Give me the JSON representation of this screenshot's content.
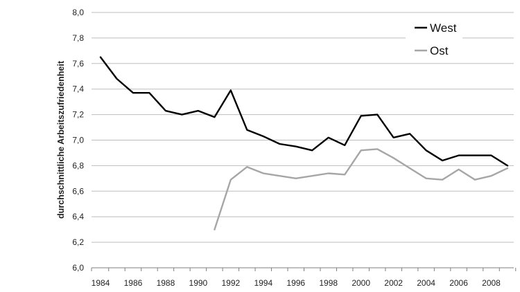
{
  "chart_data": {
    "type": "line",
    "title": "",
    "xlabel": "",
    "ylabel": "durchschnittliche Arbeitszufriedenheit",
    "ylim": [
      6.0,
      8.0
    ],
    "xlim": [
      1984,
      2009
    ],
    "y_ticks": [
      "6,0",
      "6,2",
      "6,4",
      "6,6",
      "6,8",
      "7,0",
      "7,2",
      "7,4",
      "7,6",
      "7,8",
      "8,0"
    ],
    "x_ticks": [
      "1984",
      "1986",
      "1988",
      "1990",
      "1992",
      "1994",
      "1996",
      "1998",
      "2000",
      "2002",
      "2004",
      "2006",
      "2008"
    ],
    "grid": "horizontal",
    "legend_position": "top-right",
    "series": [
      {
        "name": "West",
        "color": "#000000",
        "x": [
          1984,
          1985,
          1986,
          1987,
          1988,
          1989,
          1990,
          1991,
          1992,
          1993,
          1994,
          1995,
          1996,
          1997,
          1998,
          1999,
          2000,
          2001,
          2002,
          2003,
          2004,
          2005,
          2006,
          2007,
          2008,
          2009
        ],
        "values": [
          7.65,
          7.48,
          7.37,
          7.37,
          7.23,
          7.2,
          7.23,
          7.18,
          7.39,
          7.08,
          7.03,
          6.97,
          6.95,
          6.92,
          7.02,
          6.96,
          7.19,
          7.2,
          7.02,
          7.05,
          6.92,
          6.84,
          6.88,
          6.88,
          6.88,
          6.8
        ]
      },
      {
        "name": "Ost",
        "color": "#a6a6a6",
        "x": [
          1991,
          1992,
          1993,
          1994,
          1995,
          1996,
          1997,
          1998,
          1999,
          2000,
          2001,
          2002,
          2003,
          2004,
          2005,
          2006,
          2007,
          2008,
          2009
        ],
        "values": [
          6.3,
          6.69,
          6.79,
          6.74,
          6.72,
          6.7,
          6.72,
          6.74,
          6.73,
          6.92,
          6.93,
          6.86,
          6.78,
          6.7,
          6.69,
          6.77,
          6.69,
          6.72,
          6.78
        ]
      }
    ]
  }
}
